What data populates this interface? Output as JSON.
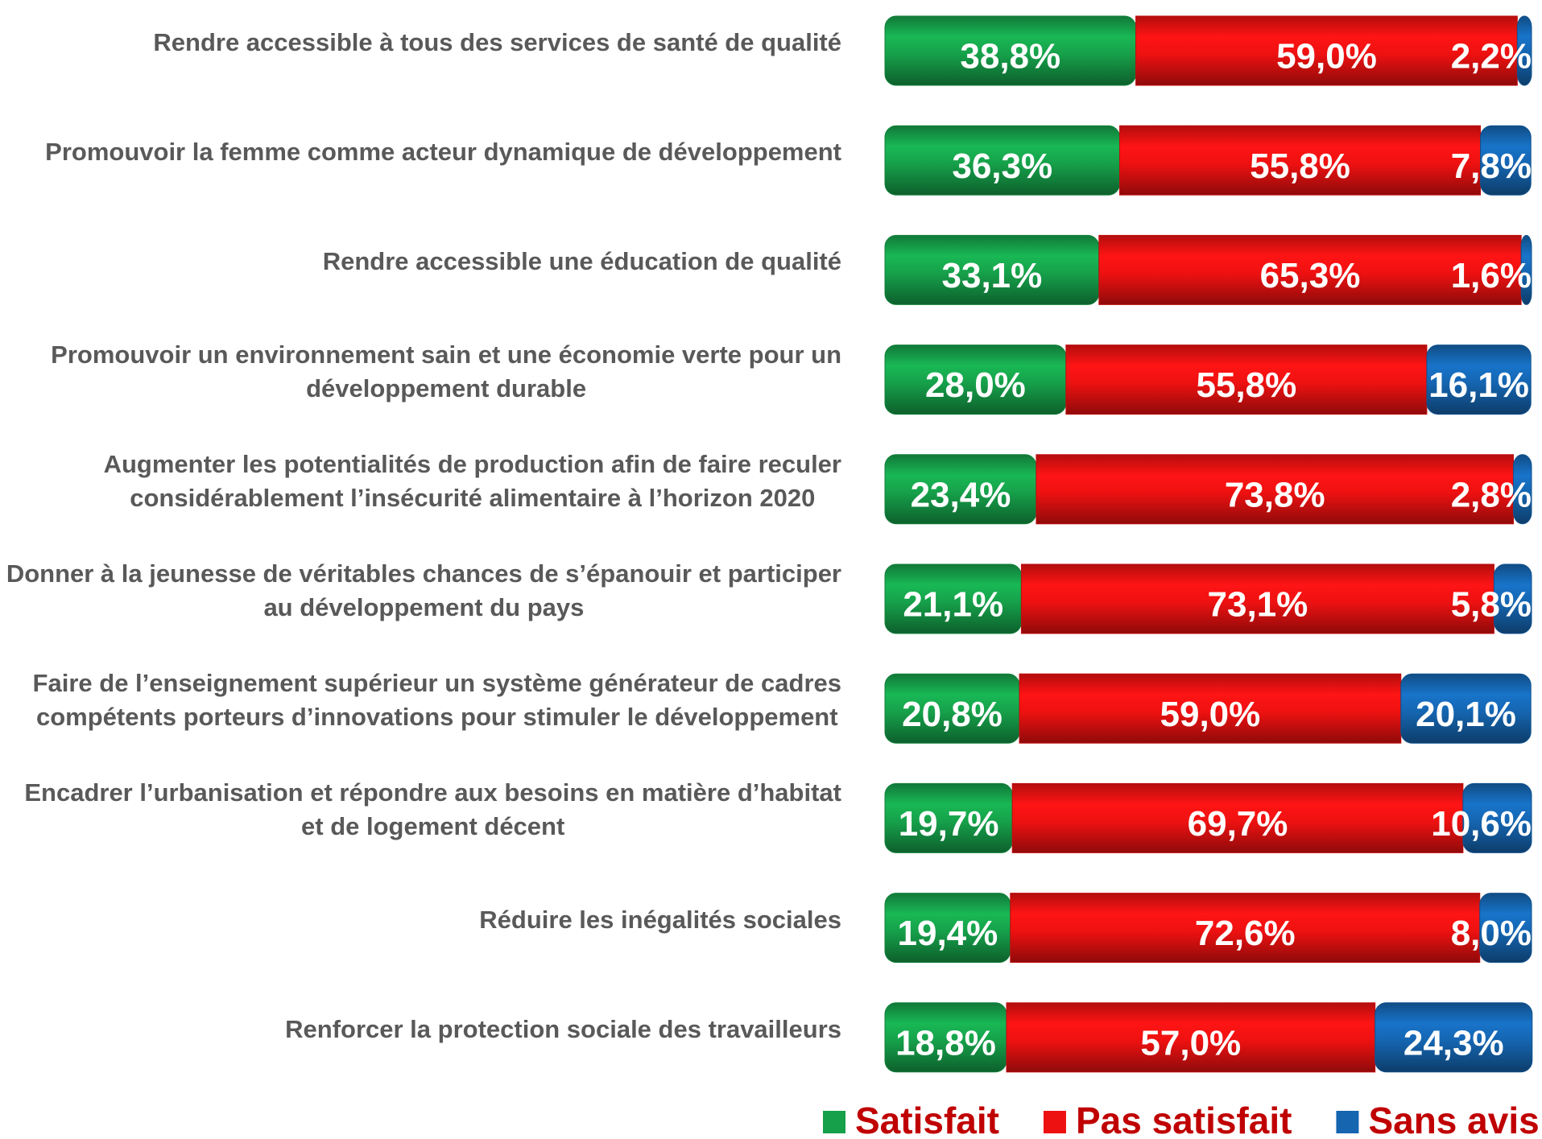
{
  "chart_data": {
    "type": "stacked-bar-horizontal",
    "categories": [
      "Rendre accessible à tous des services de santé de qualité",
      "Promouvoir la femme comme acteur dynamique de développement",
      "Rendre accessible une éducation de qualité",
      "Promouvoir un environnement sain et une économie verte pour un\ndéveloppement durable",
      "Augmenter les potentialités de production afin de  faire reculer\nconsidérablement l’insécurité alimentaire à l’horizon 2020",
      "Donner à la jeunesse de véritables chances de s’épanouir et participer\nau développement du pays",
      "Faire de l’enseignement supérieur un système générateur de cadres\ncompétents porteurs d’innovations pour stimuler le développement",
      "Encadrer l’urbanisation et répondre aux besoins en matière d’habitat\net de logement décent",
      "Réduire les inégalités sociales",
      "Renforcer la protection sociale des travailleurs"
    ],
    "xlim": [
      0,
      100
    ],
    "series": [
      {
        "name": "Satisfait",
        "color": "#16a04a",
        "values": [
          38.8,
          36.3,
          33.1,
          28.0,
          23.4,
          21.1,
          20.8,
          19.7,
          19.4,
          18.8
        ],
        "value_labels": [
          "38,8%",
          "36,3%",
          "33,1%",
          "28,0%",
          "23,4%",
          "21,1%",
          "20,8%",
          "19,7%",
          "19,4%",
          "18,8%"
        ]
      },
      {
        "name": "Pas satisfait",
        "color": "#ee1111",
        "values": [
          59.0,
          55.8,
          65.3,
          55.8,
          73.8,
          73.1,
          59.0,
          69.7,
          72.6,
          57.0
        ],
        "value_labels": [
          "59,0%",
          "55,8%",
          "65,3%",
          "55,8%",
          "73,8%",
          "73,1%",
          "59,0%",
          "69,7%",
          "72,6%",
          "57,0%"
        ]
      },
      {
        "name": "Sans avis",
        "color": "#1565b0",
        "values": [
          2.2,
          7.8,
          1.6,
          16.1,
          2.8,
          5.8,
          20.1,
          10.6,
          8.0,
          24.3
        ],
        "value_labels": [
          "2,2%",
          "7,8%",
          "1,6%",
          "16,1%",
          "2,8%",
          "5,8%",
          "20,1%",
          "10,6%",
          "8,0%",
          "24,3%"
        ]
      }
    ],
    "legend": "bottom-right"
  }
}
